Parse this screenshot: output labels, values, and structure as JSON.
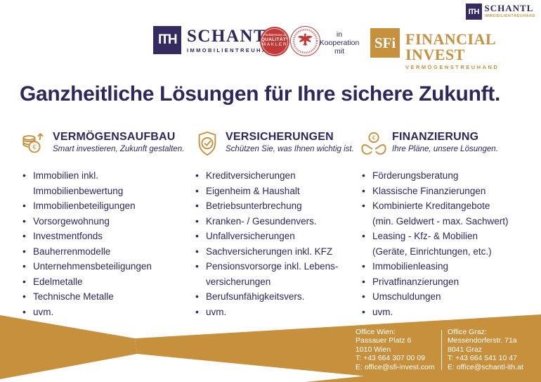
{
  "colors": {
    "navy": "#2f265c",
    "gold": "#c6903c",
    "red": "#c23a37"
  },
  "brand": {
    "mini_logo": {
      "ith": "ITH",
      "name": "SCHANTL",
      "sub": "IMMOBILIENTREUHAND"
    },
    "main_logo": {
      "ith": "ITH",
      "name": "SCHANTL",
      "sub": "IMMOBILIENTREUHAND"
    },
    "seal_quality": {
      "script": "FindMyHome.at",
      "line1": "QUALITÄT°",
      "line2": "MAKLER"
    },
    "cooperation": [
      "in",
      "Kooperation",
      "mit"
    ],
    "partner_logo": {
      "sfi": "SFi",
      "name": "FINANCIAL INVEST",
      "sub": "VERMÖGENSTREUHAND"
    }
  },
  "headline": "Ganzheitliche Lösungen für Ihre sichere Zukunft.",
  "columns": [
    {
      "icon": "coins-growth-icon",
      "title": "VERMÖGENSAUFBAU",
      "subtitle": "Smart investieren, Zukunft gestalten.",
      "items": [
        [
          "Immobilien inkl.",
          "Immobilienbewertung"
        ],
        "Immobilienbeteiligungen",
        "Vorsorgewohnung",
        "Investmentfonds",
        "Bauherrenmodelle",
        "Unternehmensbeteiligungen",
        "Edelmetalle",
        "Technische Metalle",
        "uvm."
      ]
    },
    {
      "icon": "shield-check-icon",
      "title": "VERSICHERUNGEN",
      "subtitle": "Schützen Sie, was Ihnen wichtig ist.",
      "items": [
        "Kreditversicherungen",
        "Eigenheim & Haushalt",
        "Betriebsunterbrechung",
        "Kranken- / Gesundenvers.",
        "Unfallversicherungen",
        "Sachversicherungen inkl. KFZ",
        [
          "Pensionsvorsorge inkl. Lebens-",
          "versicherungen"
        ],
        "Berufsunfähigkeitsvers.",
        "uvm."
      ]
    },
    {
      "icon": "hands-coin-icon",
      "title": "FINANZIERUNG",
      "subtitle": "Ihre Pläne, unsere Lösungen.",
      "items": [
        "Förderungsberatung",
        "Klassische Finanzierungen",
        [
          "Kombinierte Kreditangebote",
          "(min. Geldwert - max. Sachwert)"
        ],
        [
          "Leasing - Kfz- & Mobilien",
          "(Geräte, Einrichtungen, etc.)"
        ],
        "Immobilienleasing",
        "Privatfinanzierungen",
        "Umschuldungen",
        "uvm."
      ]
    }
  ],
  "footer": {
    "offices": [
      {
        "title": "Office Wien:",
        "lines": [
          "Passauer Platz 6",
          "1010 Wien",
          "T: +43 664 307 00 09",
          "E: office@sfi-invest.com"
        ]
      },
      {
        "title": "Office Graz:",
        "lines": [
          "Messendorferstr. 71a",
          "8041 Graz",
          "T: +43 664 541 10 47",
          "E: office@schantl-ith.at"
        ]
      }
    ]
  }
}
